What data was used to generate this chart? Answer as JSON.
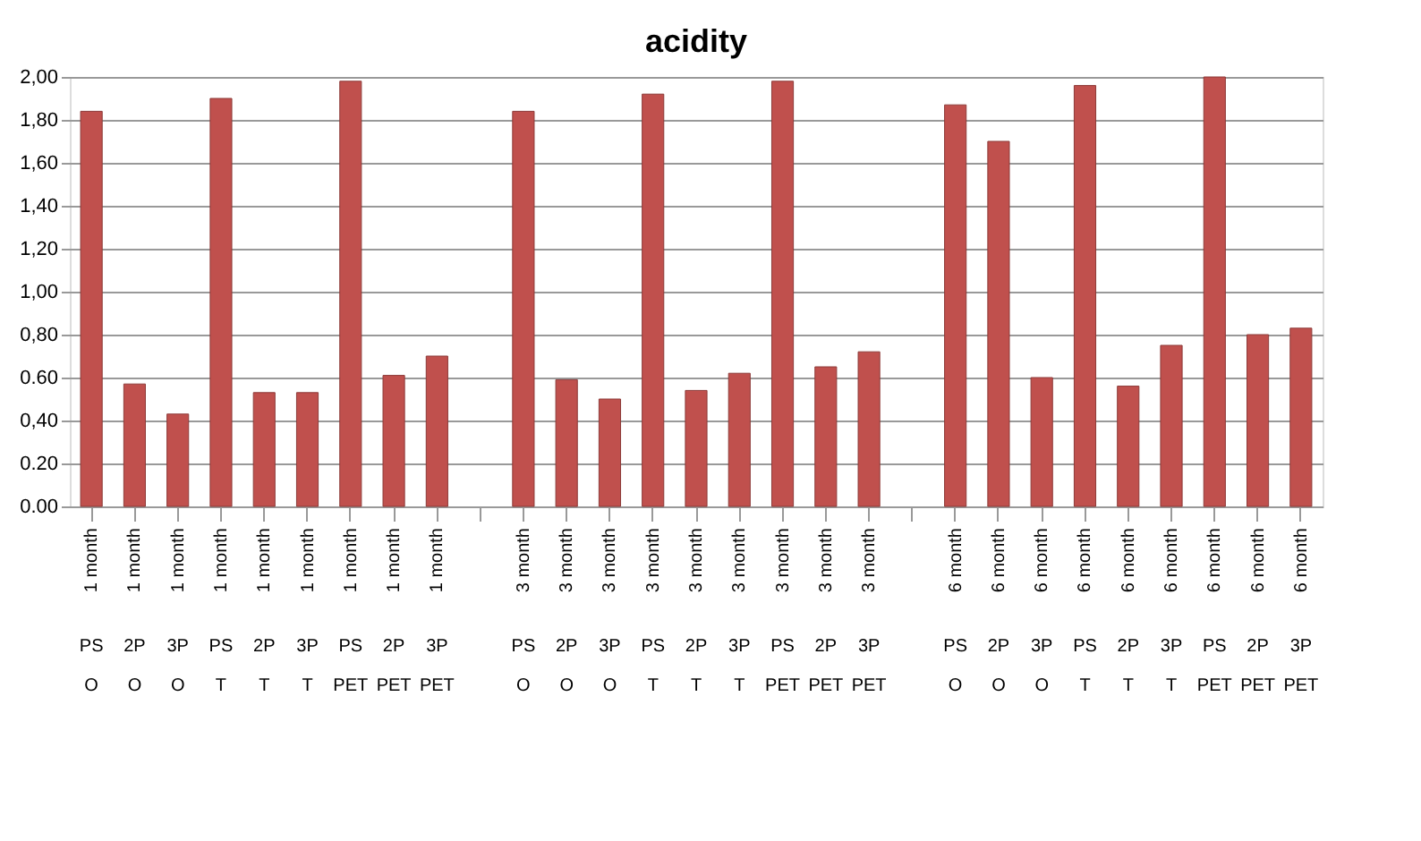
{
  "chart_data": {
    "type": "bar",
    "title": "acidity",
    "categories": [
      "1 month\nPS\nO",
      "1 month\n2P\nO",
      "1 month\n3P\nO",
      "1 month\nPS\nT",
      "1 month\n2P\nT",
      "1 month\n3P\nT",
      "1 month\nPS\nPET",
      "1 month\n2P\nPET",
      "1 month\n3P\nPET",
      null,
      "3 month\nPS\nO",
      "3 month\n2P\nO",
      "3 month\n3P\nO",
      "3 month\nPS\nT",
      "3 month\n2P\nT",
      "3 month\n3P\nT",
      "3 month\nPS\nPET",
      "3 month\n2P\nPET",
      "3 month\n3P\nPET",
      null,
      "6 month\nPS\nO",
      "6 month\n2P\nO",
      "6 month\n3P\nO",
      "6 month\nPS\nT",
      "6 month\n2P\nT",
      "6 month\n3P\nT",
      "6 month\nPS\nPET",
      "6 month\n2P\nPET",
      "6 month\n3P\nPET"
    ],
    "values": [
      1.84,
      0.57,
      0.43,
      1.9,
      0.53,
      0.53,
      1.98,
      0.61,
      0.7,
      null,
      1.84,
      0.59,
      0.5,
      1.92,
      0.54,
      0.62,
      1.98,
      0.65,
      0.72,
      null,
      1.87,
      1.7,
      0.6,
      1.96,
      0.56,
      0.75,
      2.0,
      0.8,
      0.83
    ],
    "color": "#c0504d",
    "ylim": [
      0,
      2.0
    ],
    "yticks": [
      {
        "value": 0,
        "label": "0.00"
      },
      {
        "value": 0.2,
        "label": "0.20"
      },
      {
        "value": 0.4,
        "label": "0,40"
      },
      {
        "value": 0.6,
        "label": "0.60"
      },
      {
        "value": 0.8,
        "label": "0,80"
      },
      {
        "value": 1.0,
        "label": "1,00"
      },
      {
        "value": 1.2,
        "label": "1,20"
      },
      {
        "value": 1.4,
        "label": "1,40"
      },
      {
        "value": 1.6,
        "label": "1,60"
      },
      {
        "value": 1.8,
        "label": "1,80"
      },
      {
        "value": 2.0,
        "label": "2,00"
      }
    ],
    "grid": "y"
  }
}
